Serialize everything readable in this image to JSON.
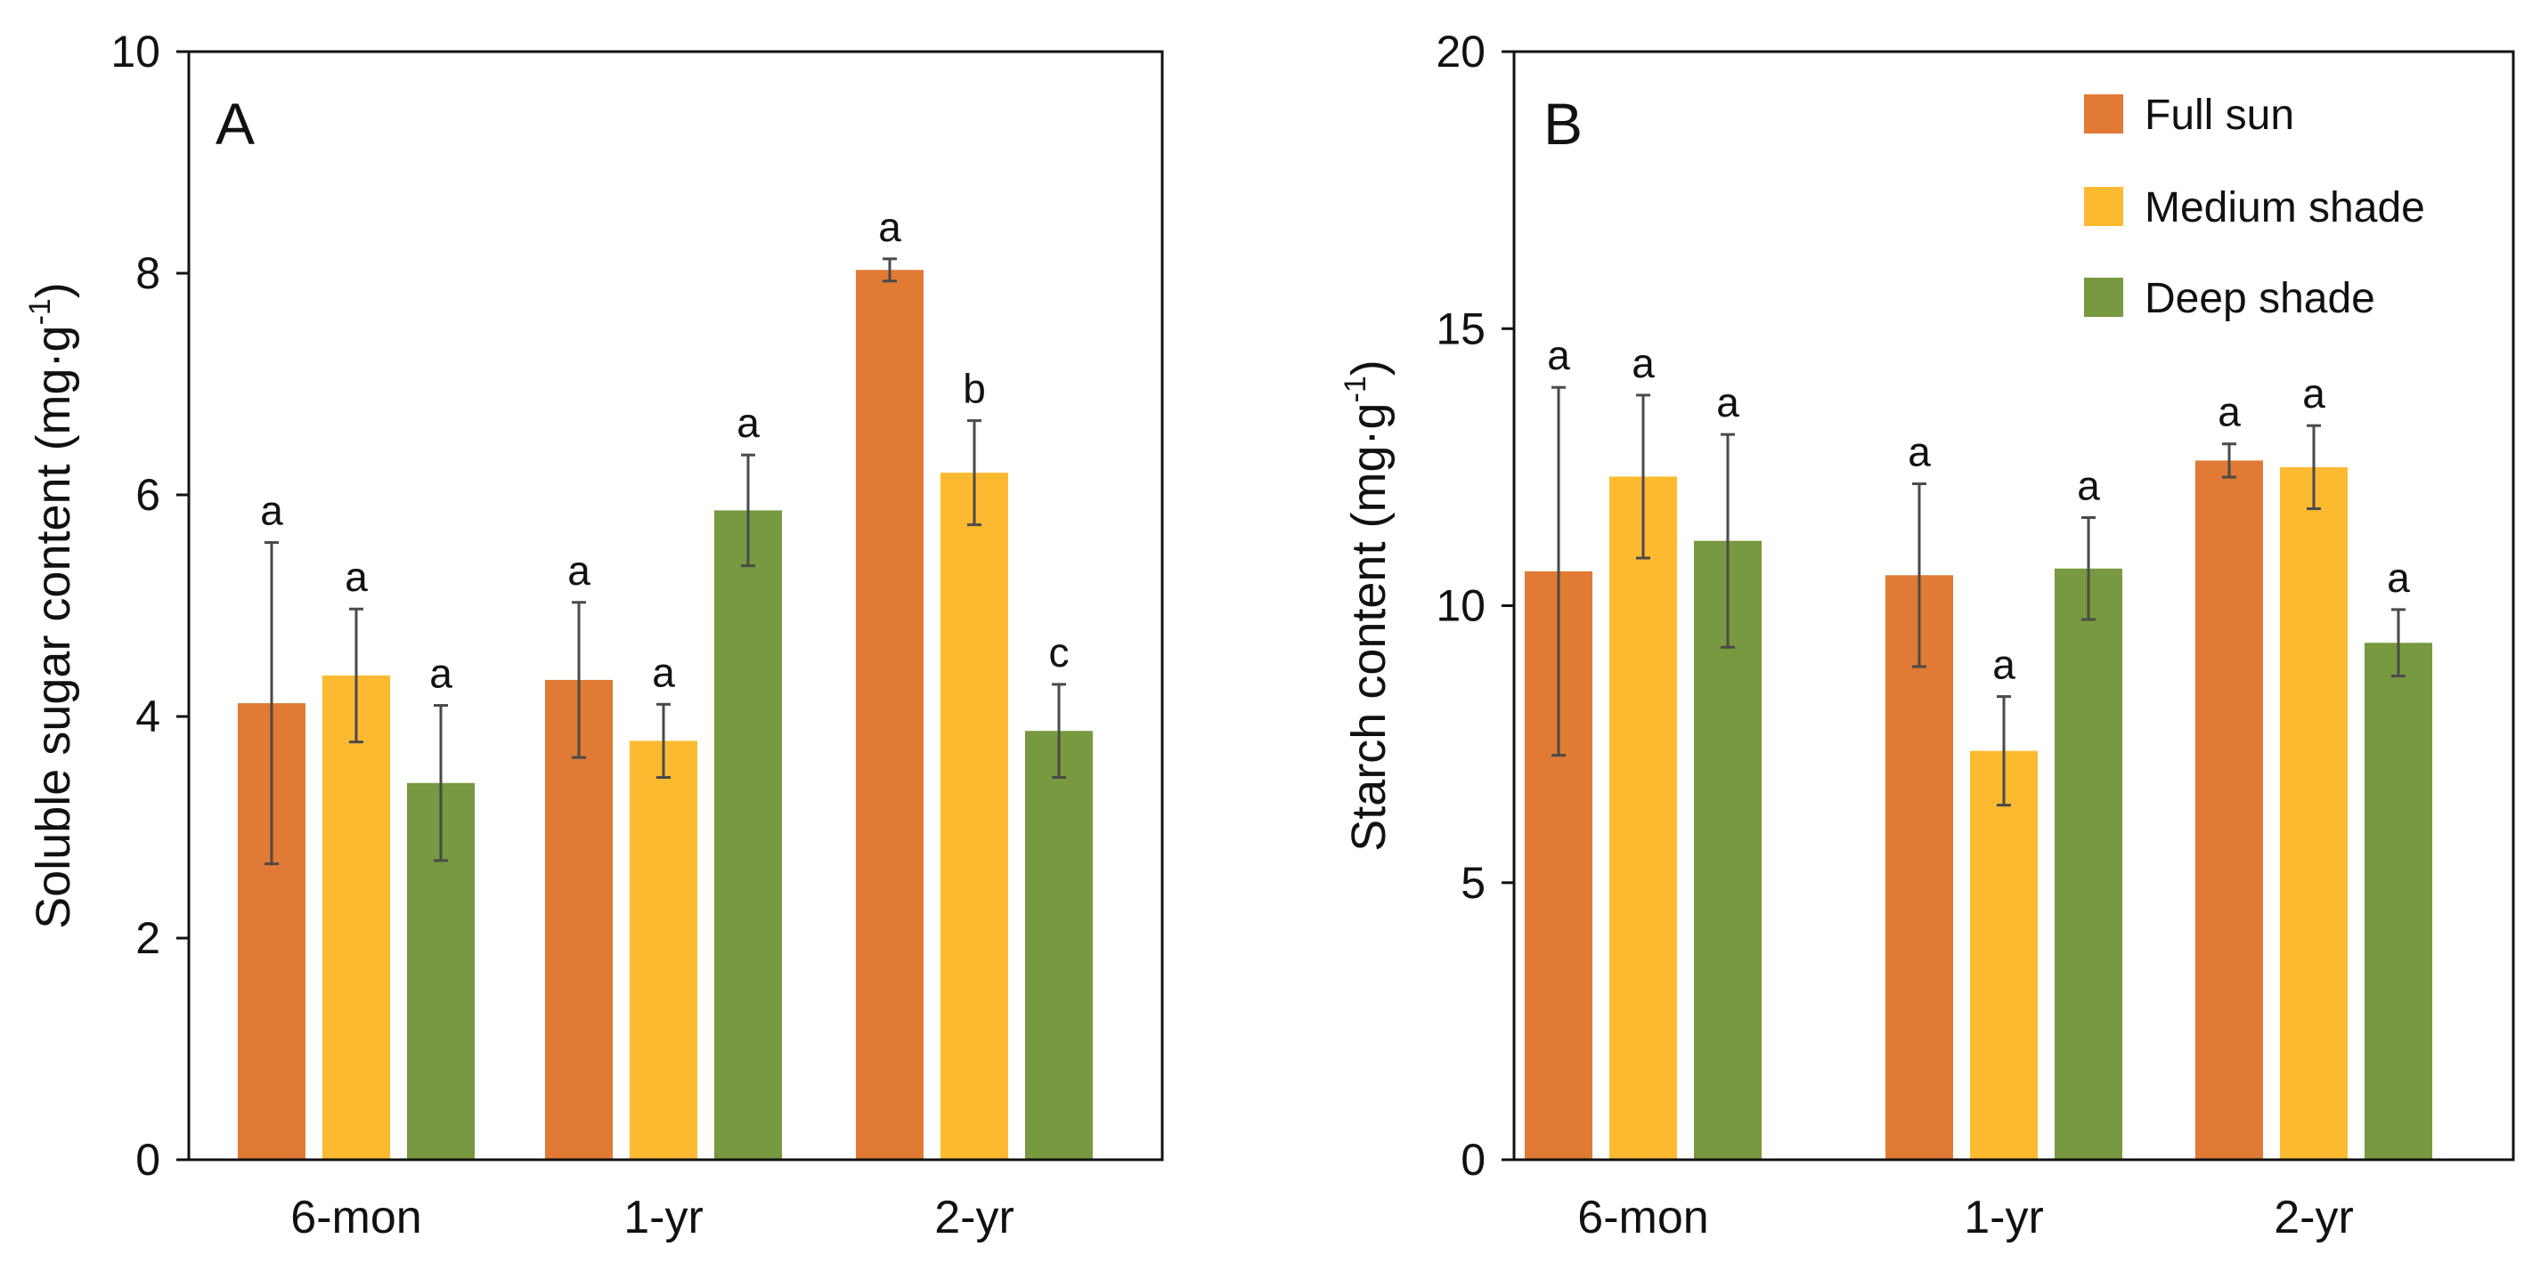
{
  "colors": {
    "full_sun": "#E07A34",
    "medium_shade": "#FDBA30",
    "deep_shade": "#77993F",
    "error_bar": "#4a4a4a",
    "axis": "#111111"
  },
  "legend": [
    {
      "key": "full_sun",
      "label": "Full sun"
    },
    {
      "key": "medium_shade",
      "label": "Medium shade"
    },
    {
      "key": "deep_shade",
      "label": "Deep shade"
    }
  ],
  "chart_data": [
    {
      "type": "bar",
      "panel": "A",
      "ylabel": "Soluble sugar content (mg·g⁻¹)",
      "ylabel_main": "Soluble sugar content (mg·g",
      "ylabel_exp": "-1",
      "ylabel_close": ")",
      "ylim": [
        0,
        10
      ],
      "yticks": [
        0,
        2,
        4,
        6,
        8,
        10
      ],
      "categories": [
        "6-mon",
        "1-yr",
        "2-yr"
      ],
      "series": [
        {
          "name": "Full sun",
          "values": [
            4.12,
            4.33,
            8.03
          ],
          "errors": [
            1.45,
            0.7,
            0.1
          ],
          "letters": [
            "a",
            "a",
            "a"
          ]
        },
        {
          "name": "Medium shade",
          "values": [
            4.37,
            3.78,
            6.2
          ],
          "errors": [
            0.6,
            0.33,
            0.47
          ],
          "letters": [
            "a",
            "a",
            "b"
          ]
        },
        {
          "name": "Deep shade",
          "values": [
            3.4,
            5.86,
            3.87
          ],
          "errors": [
            0.7,
            0.5,
            0.42
          ],
          "letters": [
            "a",
            "a",
            "c"
          ]
        }
      ]
    },
    {
      "type": "bar",
      "panel": "B",
      "ylabel": "Starch content (mg·g⁻¹)",
      "ylabel_main": "Starch content (mg·g",
      "ylabel_exp": "-1",
      "ylabel_close": ")",
      "ylim": [
        0,
        20
      ],
      "yticks": [
        0,
        5,
        10,
        15,
        20
      ],
      "categories": [
        "6-mon",
        "1-yr",
        "2-yr"
      ],
      "series": [
        {
          "name": "Full sun",
          "values": [
            10.62,
            10.55,
            12.62
          ],
          "errors": [
            3.32,
            1.65,
            0.3
          ],
          "letters": [
            "a",
            "a",
            "a"
          ]
        },
        {
          "name": "Medium shade",
          "values": [
            12.33,
            7.38,
            12.5
          ],
          "errors": [
            1.47,
            0.98,
            0.75
          ],
          "letters": [
            "a",
            "a",
            "a"
          ]
        },
        {
          "name": "Deep shade",
          "values": [
            11.17,
            10.67,
            9.33
          ],
          "errors": [
            1.92,
            0.92,
            0.6
          ],
          "letters": [
            "a",
            "a",
            "a"
          ]
        }
      ]
    }
  ]
}
